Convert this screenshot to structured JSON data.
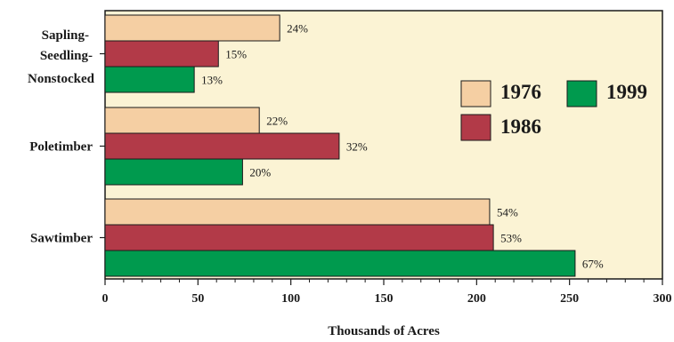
{
  "chart_data": {
    "type": "bar",
    "orientation": "horizontal",
    "categories": [
      "Sapling-Seedling-Nonstocked",
      "Poletimber",
      "Sawtimber"
    ],
    "category_label_lines": [
      [
        "Sapling-",
        "Seedling-",
        "Nonstocked"
      ],
      [
        "Poletimber"
      ],
      [
        "Sawtimber"
      ]
    ],
    "series": [
      {
        "name": "1976",
        "values": [
          94,
          83,
          207
        ],
        "labels": [
          "24%",
          "22%",
          "54%"
        ],
        "color": "#f5cfa3"
      },
      {
        "name": "1986",
        "values": [
          61,
          126,
          209
        ],
        "labels": [
          "15%",
          "32%",
          "53%"
        ],
        "color": "#b23a48"
      },
      {
        "name": "1999",
        "values": [
          48,
          74,
          253
        ],
        "labels": [
          "13%",
          "20%",
          "67%"
        ],
        "color": "#009a4e"
      }
    ],
    "xlabel": "Thousands of Acres",
    "ylabel": "",
    "title": "",
    "xlim": [
      0,
      300
    ],
    "xticks": [
      0,
      50,
      100,
      150,
      200,
      250,
      300
    ],
    "grid": false,
    "plot_background": "#fbf3d4",
    "legend_position": "right-center"
  }
}
